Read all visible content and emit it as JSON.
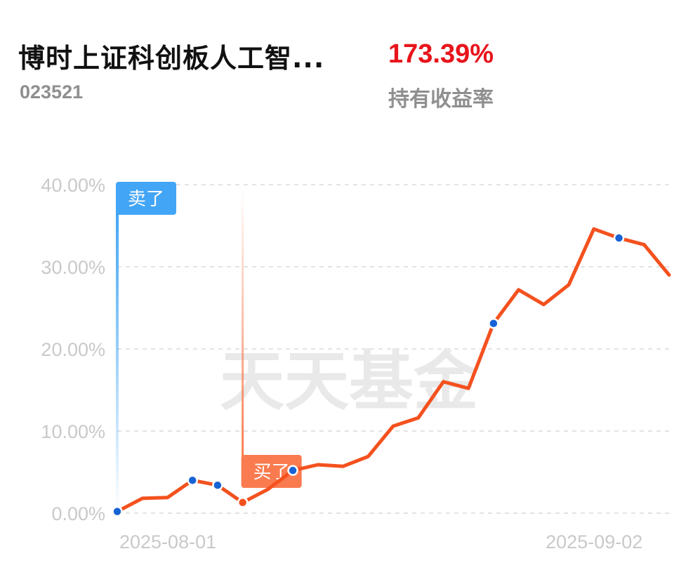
{
  "fund": {
    "name": "博时上证科创板人工智...",
    "code": "023521",
    "holding_return": "173.39%",
    "holding_return_label": "持有收益率"
  },
  "watermark": "天天基金",
  "colors": {
    "line": "#f4511e",
    "point": "#1763d6",
    "sell": "#42a5f5",
    "buy": "#f97b4f",
    "return_text": "#e8141b"
  },
  "chart_data": {
    "type": "line",
    "ylim": [
      0,
      40
    ],
    "yticks": [
      "0.00%",
      "10.00%",
      "20.00%",
      "30.00%",
      "40.00%"
    ],
    "xticks": [
      {
        "index": 0,
        "label": "2025-08-01"
      },
      {
        "index": 21,
        "label": "2025-09-02"
      }
    ],
    "values": [
      0.2,
      1.8,
      1.9,
      4.0,
      3.4,
      1.3,
      2.9,
      5.2,
      5.9,
      5.7,
      6.9,
      10.6,
      11.6,
      16.0,
      15.2,
      23.1,
      27.2,
      25.4,
      27.8,
      34.6,
      33.5,
      32.7,
      29.0
    ],
    "highlighted_points": [
      0,
      3,
      4,
      5,
      7,
      15,
      20
    ],
    "markers": [
      {
        "index": 0,
        "label": "卖了",
        "kind": "sell"
      },
      {
        "index": 5,
        "label": "买了",
        "kind": "buy"
      }
    ]
  }
}
